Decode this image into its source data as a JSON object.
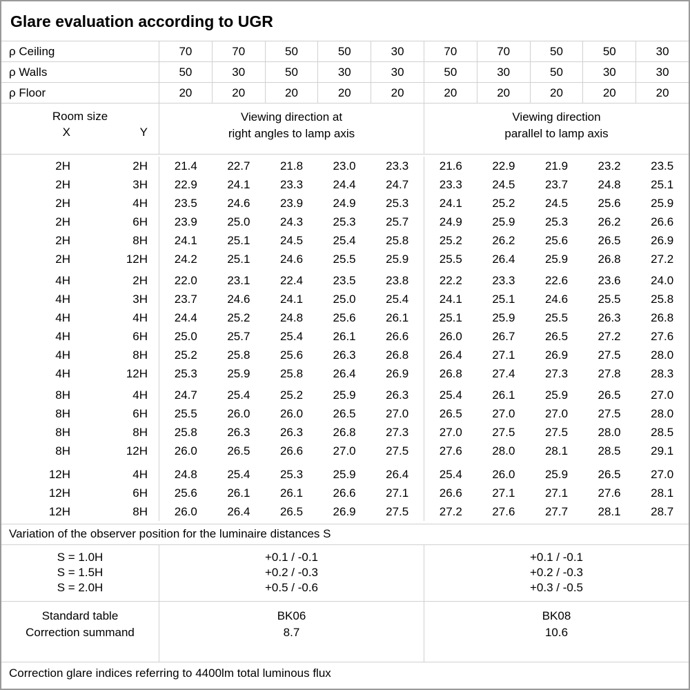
{
  "title": "Glare evaluation according to UGR",
  "colors": {
    "background": "#ffffff",
    "text": "#000000",
    "grid_line": "#d0d0d0",
    "outer_border": "#999999"
  },
  "reflectance_rows": [
    {
      "label": "ρ Ceiling",
      "values": [
        "70",
        "70",
        "50",
        "50",
        "30",
        "70",
        "70",
        "50",
        "50",
        "30"
      ]
    },
    {
      "label": "ρ Walls",
      "values": [
        "50",
        "30",
        "50",
        "30",
        "30",
        "50",
        "30",
        "50",
        "30",
        "30"
      ]
    },
    {
      "label": "ρ Floor",
      "values": [
        "20",
        "20",
        "20",
        "20",
        "20",
        "20",
        "20",
        "20",
        "20",
        "20"
      ]
    }
  ],
  "header": {
    "room_size": "Room size",
    "x_label": "X",
    "y_label": "Y",
    "left_heading_line1": "Viewing direction at",
    "left_heading_line2": "right angles to lamp axis",
    "right_heading_line1": "Viewing direction",
    "right_heading_line2": "parallel to lamp axis"
  },
  "ugr_groups": [
    {
      "rows": [
        {
          "x": "2H",
          "y": "2H",
          "values": [
            "21.4",
            "22.7",
            "21.8",
            "23.0",
            "23.3",
            "21.6",
            "22.9",
            "21.9",
            "23.2",
            "23.5"
          ]
        },
        {
          "x": "2H",
          "y": "3H",
          "values": [
            "22.9",
            "24.1",
            "23.3",
            "24.4",
            "24.7",
            "23.3",
            "24.5",
            "23.7",
            "24.8",
            "25.1"
          ]
        },
        {
          "x": "2H",
          "y": "4H",
          "values": [
            "23.5",
            "24.6",
            "23.9",
            "24.9",
            "25.3",
            "24.1",
            "25.2",
            "24.5",
            "25.6",
            "25.9"
          ]
        },
        {
          "x": "2H",
          "y": "6H",
          "values": [
            "23.9",
            "25.0",
            "24.3",
            "25.3",
            "25.7",
            "24.9",
            "25.9",
            "25.3",
            "26.2",
            "26.6"
          ]
        },
        {
          "x": "2H",
          "y": "8H",
          "values": [
            "24.1",
            "25.1",
            "24.5",
            "25.4",
            "25.8",
            "25.2",
            "26.2",
            "25.6",
            "26.5",
            "26.9"
          ]
        },
        {
          "x": "2H",
          "y": "12H",
          "values": [
            "24.2",
            "25.1",
            "24.6",
            "25.5",
            "25.9",
            "25.5",
            "26.4",
            "25.9",
            "26.8",
            "27.2"
          ]
        }
      ]
    },
    {
      "rows": [
        {
          "x": "4H",
          "y": "2H",
          "values": [
            "22.0",
            "23.1",
            "22.4",
            "23.5",
            "23.8",
            "22.2",
            "23.3",
            "22.6",
            "23.6",
            "24.0"
          ]
        },
        {
          "x": "4H",
          "y": "3H",
          "values": [
            "23.7",
            "24.6",
            "24.1",
            "25.0",
            "25.4",
            "24.1",
            "25.1",
            "24.6",
            "25.5",
            "25.8"
          ]
        },
        {
          "x": "4H",
          "y": "4H",
          "values": [
            "24.4",
            "25.2",
            "24.8",
            "25.6",
            "26.1",
            "25.1",
            "25.9",
            "25.5",
            "26.3",
            "26.8"
          ]
        },
        {
          "x": "4H",
          "y": "6H",
          "values": [
            "25.0",
            "25.7",
            "25.4",
            "26.1",
            "26.6",
            "26.0",
            "26.7",
            "26.5",
            "27.2",
            "27.6"
          ]
        },
        {
          "x": "4H",
          "y": "8H",
          "values": [
            "25.2",
            "25.8",
            "25.6",
            "26.3",
            "26.8",
            "26.4",
            "27.1",
            "26.9",
            "27.5",
            "28.0"
          ]
        },
        {
          "x": "4H",
          "y": "12H",
          "values": [
            "25.3",
            "25.9",
            "25.8",
            "26.4",
            "26.9",
            "26.8",
            "27.4",
            "27.3",
            "27.8",
            "28.3"
          ]
        }
      ]
    },
    {
      "rows": [
        {
          "x": "8H",
          "y": "4H",
          "values": [
            "24.7",
            "25.4",
            "25.2",
            "25.9",
            "26.3",
            "25.4",
            "26.1",
            "25.9",
            "26.5",
            "27.0"
          ]
        },
        {
          "x": "8H",
          "y": "6H",
          "values": [
            "25.5",
            "26.0",
            "26.0",
            "26.5",
            "27.0",
            "26.5",
            "27.0",
            "27.0",
            "27.5",
            "28.0"
          ]
        },
        {
          "x": "8H",
          "y": "8H",
          "values": [
            "25.8",
            "26.3",
            "26.3",
            "26.8",
            "27.3",
            "27.0",
            "27.5",
            "27.5",
            "28.0",
            "28.5"
          ]
        },
        {
          "x": "8H",
          "y": "12H",
          "values": [
            "26.0",
            "26.5",
            "26.6",
            "27.0",
            "27.5",
            "27.6",
            "28.0",
            "28.1",
            "28.5",
            "29.1"
          ]
        }
      ]
    },
    {
      "rows": [
        {
          "x": "12H",
          "y": "4H",
          "values": [
            "24.8",
            "25.4",
            "25.3",
            "25.9",
            "26.4",
            "25.4",
            "26.0",
            "25.9",
            "26.5",
            "27.0"
          ]
        },
        {
          "x": "12H",
          "y": "6H",
          "values": [
            "25.6",
            "26.1",
            "26.1",
            "26.6",
            "27.1",
            "26.6",
            "27.1",
            "27.1",
            "27.6",
            "28.1"
          ]
        },
        {
          "x": "12H",
          "y": "8H",
          "values": [
            "26.0",
            "26.4",
            "26.5",
            "26.9",
            "27.5",
            "27.2",
            "27.6",
            "27.7",
            "28.1",
            "28.7"
          ]
        }
      ]
    }
  ],
  "variation_note": "Variation of the observer position for the luminaire distances S",
  "spacing_rows": [
    {
      "label": "S = 1.0H",
      "left": "+0.1 / -0.1",
      "right": "+0.1 / -0.1"
    },
    {
      "label": "S = 1.5H",
      "left": "+0.2 / -0.3",
      "right": "+0.2 / -0.3"
    },
    {
      "label": "S = 2.0H",
      "left": "+0.5 / -0.6",
      "right": "+0.3 / -0.5"
    }
  ],
  "standard_table": {
    "row1_label": "Standard table",
    "row2_label": "Correction summand",
    "left_row1": "BK06",
    "left_row2": "8.7",
    "right_row1": "BK08",
    "right_row2": "10.6"
  },
  "footer_note": "Correction glare indices referring to 4400lm total luminous flux"
}
